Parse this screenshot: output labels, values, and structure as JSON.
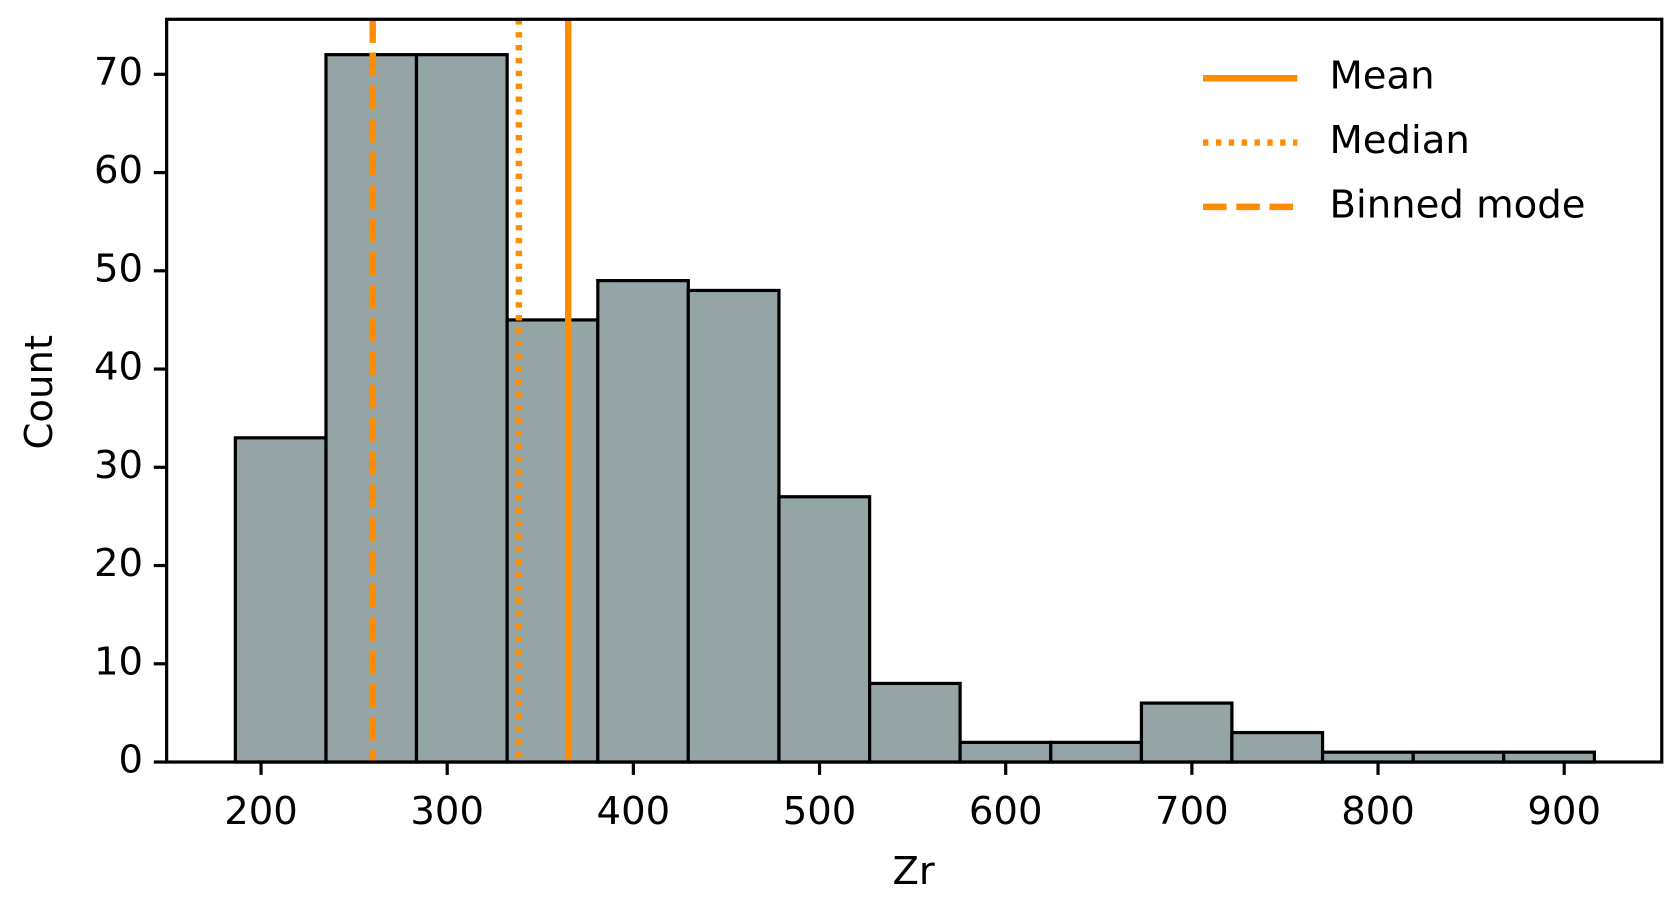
{
  "chart_data": {
    "type": "histogram",
    "xlabel": "Zr",
    "ylabel": "Count",
    "bins": [
      186.2,
      234.9,
      283.5,
      332.2,
      380.9,
      429.5,
      478.2,
      526.9,
      575.5,
      624.2,
      672.9,
      721.5,
      770.2,
      818.9,
      867.5,
      916.2
    ],
    "values": [
      33,
      72,
      72,
      45,
      49,
      48,
      27,
      8,
      2,
      2,
      6,
      3,
      1,
      1,
      1
    ],
    "color": "#95a5a6",
    "edgecolor": "#000000",
    "lines": [
      {
        "name": "Mean",
        "value": 365,
        "style": "solid",
        "color": "#ff8c00"
      },
      {
        "name": "Median",
        "value": 338.5,
        "style": "dotted",
        "color": "#ff8c00"
      },
      {
        "name": "Binned mode",
        "value": 260,
        "style": "dashed",
        "color": "#ff8c00"
      }
    ],
    "legend": "upper right",
    "xlim": [
      149.3,
      952.4
    ],
    "xticks": [
      200,
      300,
      400,
      500,
      600,
      700,
      800,
      900
    ],
    "ylim": [
      0,
      75.6
    ],
    "yticks": [
      0,
      10,
      20,
      30,
      40,
      50,
      60,
      70
    ]
  }
}
